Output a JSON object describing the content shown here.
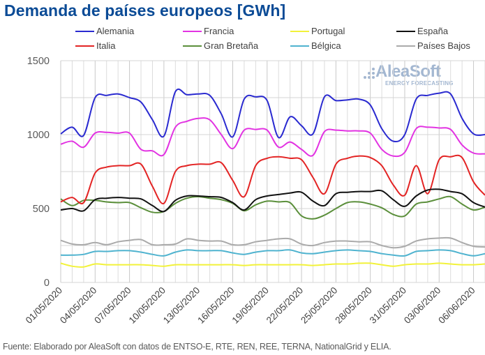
{
  "title": "Demanda de países europeos [GWh]",
  "source": "Fuente: Elaborado por AleaSoft con datos de ENTSO-E, RTE, REN, REE, TERNA, NationalGrid y ELIA.",
  "watermark": {
    "main": "AleaSoft",
    "sub": "ENERGY FORECASTING"
  },
  "chart_data": {
    "type": "line",
    "title": "Demanda de países europeos [GWh]",
    "xlabel": "",
    "ylabel": "",
    "ylim": [
      0,
      1500
    ],
    "yticks": [
      0,
      500,
      1000,
      1500
    ],
    "ytick_labels": [
      "0",
      "500",
      "1000",
      "1500"
    ],
    "grid": true,
    "legend_position": "top",
    "x": [
      "01/05/2020",
      "02/05/2020",
      "03/05/2020",
      "04/05/2020",
      "05/05/2020",
      "06/05/2020",
      "07/05/2020",
      "08/05/2020",
      "09/05/2020",
      "10/05/2020",
      "11/05/2020",
      "12/05/2020",
      "13/05/2020",
      "14/05/2020",
      "15/05/2020",
      "16/05/2020",
      "17/05/2020",
      "18/05/2020",
      "19/05/2020",
      "20/05/2020",
      "21/05/2020",
      "22/05/2020",
      "23/05/2020",
      "24/05/2020",
      "25/05/2020",
      "26/05/2020",
      "27/05/2020",
      "28/05/2020",
      "29/05/2020",
      "30/05/2020",
      "31/05/2020",
      "01/06/2020",
      "02/06/2020",
      "03/06/2020",
      "04/06/2020",
      "05/06/2020",
      "06/06/2020",
      "07/06/2020"
    ],
    "xtick_labels": [
      "01/05/2020",
      "04/05/2020",
      "07/05/2020",
      "10/05/2020",
      "13/05/2020",
      "16/05/2020",
      "19/05/2020",
      "22/05/2020",
      "25/05/2020",
      "28/05/2020",
      "31/05/2020",
      "03/06/2020",
      "06/06/2020"
    ],
    "series": [
      {
        "name": "Alemania",
        "color": "#2a2ad0",
        "values": [
          1005,
          1050,
          995,
          1250,
          1265,
          1275,
          1250,
          1220,
          1100,
          990,
          1290,
          1270,
          1275,
          1265,
          1140,
          985,
          1240,
          1255,
          1230,
          980,
          1120,
          1060,
          1005,
          1255,
          1230,
          1235,
          1240,
          1200,
          1040,
          955,
          1000,
          1240,
          1265,
          1280,
          1275,
          1110,
          1005,
          1000
        ]
      },
      {
        "name": "Francia",
        "color": "#e233e2",
        "values": [
          935,
          955,
          915,
          1010,
          1015,
          1010,
          1010,
          900,
          890,
          865,
          1050,
          1090,
          1110,
          1100,
          1000,
          905,
          1030,
          1035,
          1030,
          915,
          950,
          900,
          860,
          1020,
          1030,
          1025,
          1025,
          1010,
          900,
          855,
          880,
          1040,
          1050,
          1045,
          1035,
          930,
          875,
          870
        ]
      },
      {
        "name": "Portugal",
        "color": "#f2f23a",
        "values": [
          130,
          110,
          105,
          125,
          120,
          120,
          120,
          120,
          115,
          110,
          120,
          120,
          120,
          120,
          120,
          120,
          115,
          120,
          120,
          120,
          120,
          120,
          115,
          120,
          125,
          125,
          130,
          130,
          120,
          110,
          120,
          125,
          125,
          130,
          125,
          120,
          120,
          125
        ]
      },
      {
        "name": "España",
        "color": "#111111",
        "values": [
          490,
          500,
          485,
          560,
          570,
          575,
          570,
          565,
          520,
          480,
          555,
          585,
          585,
          580,
          575,
          540,
          490,
          560,
          585,
          595,
          605,
          610,
          550,
          520,
          600,
          610,
          615,
          615,
          620,
          560,
          515,
          585,
          625,
          630,
          615,
          600,
          540,
          510
        ]
      },
      {
        "name": "Italia",
        "color": "#e32424",
        "values": [
          545,
          575,
          540,
          740,
          780,
          790,
          790,
          800,
          650,
          535,
          750,
          790,
          800,
          800,
          810,
          690,
          580,
          790,
          840,
          850,
          840,
          830,
          710,
          600,
          800,
          840,
          855,
          845,
          790,
          660,
          590,
          790,
          600,
          830,
          850,
          845,
          680,
          590
        ]
      },
      {
        "name": "Gran Bretaña",
        "color": "#5b8f3b",
        "values": [
          565,
          520,
          555,
          555,
          545,
          540,
          540,
          505,
          475,
          480,
          535,
          570,
          580,
          570,
          560,
          535,
          485,
          525,
          550,
          545,
          540,
          450,
          430,
          455,
          500,
          540,
          545,
          530,
          505,
          460,
          450,
          530,
          545,
          565,
          580,
          530,
          490,
          510
        ]
      },
      {
        "name": "Bélgica",
        "color": "#4fb3cf",
        "values": [
          185,
          185,
          190,
          210,
          210,
          215,
          215,
          205,
          190,
          180,
          205,
          220,
          215,
          215,
          215,
          200,
          190,
          205,
          215,
          215,
          220,
          200,
          195,
          205,
          215,
          220,
          215,
          210,
          195,
          185,
          180,
          210,
          215,
          220,
          215,
          195,
          180,
          195
        ]
      },
      {
        "name": "Países Bajos",
        "color": "#aaaaaa",
        "values": [
          285,
          260,
          255,
          270,
          255,
          275,
          285,
          290,
          255,
          255,
          260,
          295,
          285,
          280,
          280,
          255,
          255,
          275,
          285,
          295,
          295,
          260,
          250,
          270,
          280,
          280,
          275,
          275,
          250,
          235,
          245,
          280,
          295,
          300,
          300,
          270,
          245,
          240
        ]
      }
    ]
  }
}
